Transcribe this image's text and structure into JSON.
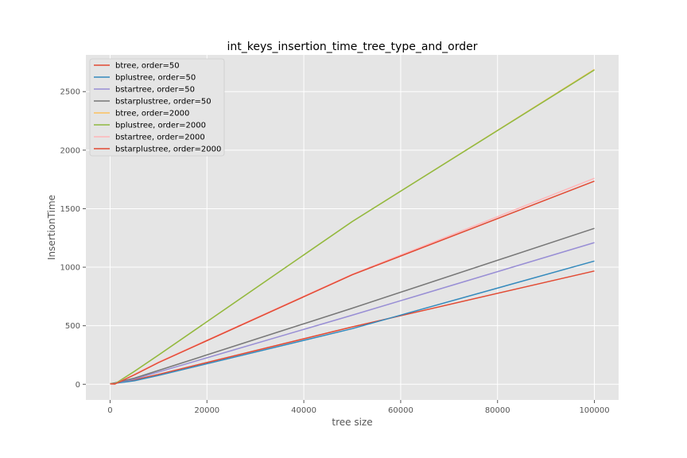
{
  "chart_data": {
    "type": "line",
    "title": "int_keys_insertion_time_tree_type_and_order",
    "xlabel": "tree size",
    "ylabel": "InsertionTime",
    "xlim": [
      -5000,
      105000
    ],
    "ylim": [
      -134,
      2814
    ],
    "xticks": [
      0,
      20000,
      40000,
      60000,
      80000,
      100000
    ],
    "xtick_labels": [
      "0",
      "20000",
      "40000",
      "60000",
      "80000",
      "100000"
    ],
    "yticks": [
      0,
      500,
      1000,
      1500,
      2000,
      2500
    ],
    "ytick_labels": [
      "0",
      "500",
      "1000",
      "1500",
      "2000",
      "2500"
    ],
    "grid": true,
    "legend_position": "top-left",
    "x": [
      0,
      1000,
      5000,
      10000,
      50000,
      100000
    ],
    "series": [
      {
        "name": "btree, order=50",
        "color": "#E24A33",
        "values": [
          5,
          10,
          38,
          85,
          490,
          968
        ]
      },
      {
        "name": "bplustree, order=50",
        "color": "#348ABD",
        "values": [
          3,
          8,
          30,
          75,
          475,
          1053
        ]
      },
      {
        "name": "bstartree, order=50",
        "color": "#988ED5",
        "values": [
          3,
          10,
          45,
          105,
          590,
          1210
        ]
      },
      {
        "name": "bstarplustree, order=50",
        "color": "#777777",
        "values": [
          4,
          12,
          52,
          118,
          650,
          1332
        ]
      },
      {
        "name": "btree, order=2000",
        "color": "#FBC15E",
        "values": [
          5,
          3,
          110,
          250,
          1390,
          2690
        ]
      },
      {
        "name": "bplustree, order=2000",
        "color": "#8EBA42",
        "values": [
          5,
          3,
          110,
          250,
          1390,
          2685
        ]
      },
      {
        "name": "bstartree, order=2000",
        "color": "#FFB5B8",
        "values": [
          4,
          2,
          85,
          190,
          940,
          1760
        ]
      },
      {
        "name": "bstarplustree, order=2000",
        "color": "#E24A33",
        "values": [
          4,
          2,
          80,
          185,
          935,
          1735
        ]
      }
    ]
  }
}
